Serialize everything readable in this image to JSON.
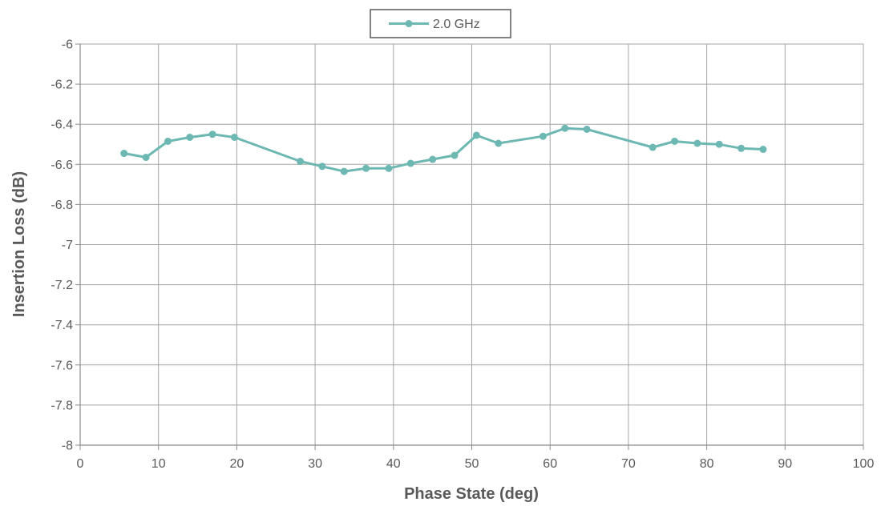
{
  "chart_data": {
    "type": "line",
    "title": "",
    "xlabel": "Phase State (deg)",
    "ylabel": "Insertion Loss (dB)",
    "xlim": [
      0,
      100
    ],
    "ylim": [
      -8,
      -6
    ],
    "xticks": [
      0,
      10,
      20,
      30,
      40,
      50,
      60,
      70,
      80,
      90,
      100
    ],
    "yticks": [
      -6,
      -6.2,
      -6.4,
      -6.6,
      -6.8,
      -7,
      -7.2,
      -7.4,
      -7.6,
      -7.8,
      -8
    ],
    "xtick_labels": [
      "0",
      "10",
      "20",
      "30",
      "40",
      "50",
      "60",
      "70",
      "80",
      "90",
      "100"
    ],
    "ytick_labels": [
      "-6",
      "-6.2",
      "-6.4",
      "-6.6",
      "-6.8",
      "-7",
      "-7.2",
      "-7.4",
      "-7.6",
      "-7.8",
      "-8"
    ],
    "grid": true,
    "legend_position": "top-center",
    "series": [
      {
        "name": "2.0 GHz",
        "color": "#6DB8B3",
        "x": [
          5.6,
          8.4,
          11.2,
          14.0,
          16.9,
          19.7,
          28.1,
          30.9,
          33.7,
          36.5,
          39.4,
          42.2,
          45.0,
          47.8,
          50.6,
          53.4,
          59.1,
          61.9,
          64.7,
          73.1,
          75.9,
          78.8,
          81.6,
          84.4,
          87.2
        ],
        "y": [
          -6.545,
          -6.565,
          -6.485,
          -6.465,
          -6.45,
          -6.465,
          -6.585,
          -6.61,
          -6.635,
          -6.62,
          -6.62,
          -6.595,
          -6.575,
          -6.555,
          -6.455,
          -6.495,
          -6.46,
          -6.42,
          -6.425,
          -6.515,
          -6.485,
          -6.495,
          -6.5,
          -6.52,
          -6.525
        ]
      }
    ]
  },
  "colors": {
    "grid": "#A6A6A6",
    "axis": "#8C8C8C",
    "text": "#595959",
    "legend_border": "#595959"
  }
}
